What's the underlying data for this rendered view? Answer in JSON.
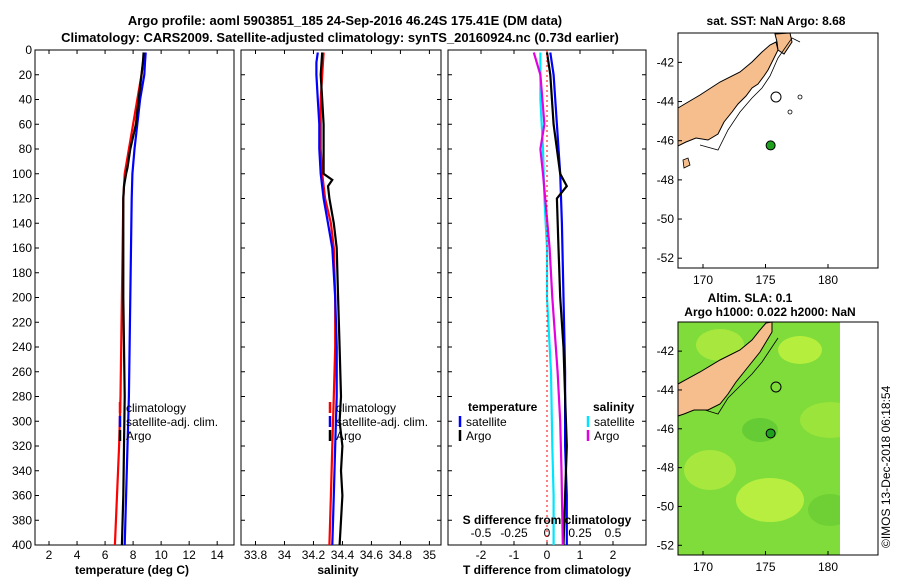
{
  "title": {
    "line1": "Argo profile: aoml 5903851_185 24-Sep-2016 46.24S 175.41E (DM data)",
    "line2": "Climatology: CARS2009. Satellite-adjusted climatology: synTS_20160924.nc (0.73d earlier)"
  },
  "colors": {
    "climatology": "#ff0000",
    "satellite": "#0000ff",
    "argo": "#000000",
    "sat_diff": "#00e5ff",
    "sal_diff": "#e000e0",
    "land": "#f5be8c",
    "ocean_anom": "#7fe03a"
  },
  "watermark": "©IMOS 13-Dec-2018 06:18:54",
  "chart_data": [
    {
      "type": "line",
      "name": "temperature-panel",
      "xlabel": "temperature (deg C)",
      "ylabel": "",
      "xlim": [
        1,
        15.2
      ],
      "ylim": [
        400,
        0
      ],
      "xticks": [
        "2",
        "4",
        "6",
        "8",
        "10",
        "12",
        "14"
      ],
      "xtick_values": [
        2,
        4,
        6,
        8,
        10,
        12,
        14
      ],
      "yticks": [
        0,
        20,
        40,
        60,
        80,
        100,
        120,
        140,
        160,
        180,
        200,
        220,
        240,
        260,
        280,
        300,
        320,
        340,
        360,
        380,
        400
      ],
      "legend_location": "center-right",
      "series": [
        {
          "name": "climatology",
          "color": "#ff0000",
          "depth": [
            2,
            20,
            40,
            60,
            80,
            100,
            120,
            160,
            200,
            240,
            280,
            320,
            360,
            400
          ],
          "values": [
            8.8,
            8.6,
            8.3,
            8.0,
            7.7,
            7.4,
            7.3,
            7.25,
            7.2,
            7.15,
            7.1,
            7.0,
            6.85,
            6.7
          ]
        },
        {
          "name": "satellite-adj. clim.",
          "color": "#0000ff",
          "depth": [
            2,
            10,
            20,
            40,
            60,
            80,
            100,
            120,
            160,
            200,
            240,
            280,
            320,
            360,
            400
          ],
          "values": [
            8.9,
            8.85,
            8.8,
            8.5,
            8.3,
            8.1,
            7.95,
            7.9,
            7.85,
            7.8,
            7.75,
            7.7,
            7.6,
            7.5,
            7.4
          ]
        },
        {
          "name": "Argo",
          "color": "#000000",
          "depth": [
            2,
            10,
            20,
            40,
            60,
            80,
            95,
            100,
            110,
            120,
            140,
            160,
            200,
            240,
            280,
            320,
            360,
            400
          ],
          "values": [
            8.75,
            8.7,
            8.6,
            8.4,
            8.2,
            7.8,
            7.6,
            7.5,
            7.35,
            7.3,
            7.3,
            7.3,
            7.3,
            7.35,
            7.4,
            7.35,
            7.3,
            7.2
          ]
        }
      ],
      "legend": [
        "climatology",
        "satellite-adj. clim.",
        "Argo"
      ]
    },
    {
      "type": "line",
      "name": "salinity-panel",
      "xlabel": "salinity",
      "xlim": [
        33.7,
        35.08
      ],
      "ylim": [
        400,
        0
      ],
      "xticks": [
        "33.8",
        "34",
        "34.2",
        "34.4",
        "34.6",
        "34.8",
        "35"
      ],
      "xtick_values": [
        33.8,
        34.0,
        34.2,
        34.4,
        34.6,
        34.8,
        35.0
      ],
      "legend_location": "center-right",
      "series": [
        {
          "name": "climatology",
          "color": "#ff0000",
          "depth": [
            2,
            20,
            40,
            60,
            80,
            100,
            120,
            140,
            160,
            200,
            240,
            280,
            320,
            360,
            400
          ],
          "values": [
            34.27,
            34.26,
            34.25,
            34.25,
            34.25,
            34.26,
            34.28,
            34.32,
            34.34,
            34.35,
            34.35,
            34.34,
            34.33,
            34.32,
            34.31
          ]
        },
        {
          "name": "satellite-adj. clim.",
          "color": "#0000ff",
          "depth": [
            2,
            10,
            20,
            40,
            60,
            80,
            100,
            120,
            140,
            160,
            200,
            240,
            280,
            320,
            360,
            400
          ],
          "values": [
            34.23,
            34.22,
            34.22,
            34.23,
            34.24,
            34.24,
            34.25,
            34.27,
            34.3,
            34.33,
            34.35,
            34.36,
            34.36,
            34.35,
            34.34,
            34.33
          ]
        },
        {
          "name": "Argo",
          "color": "#000000",
          "depth": [
            2,
            20,
            40,
            60,
            80,
            100,
            105,
            110,
            120,
            140,
            160,
            200,
            240,
            280,
            300,
            320,
            340,
            360,
            380,
            400
          ],
          "values": [
            34.26,
            34.25,
            34.26,
            34.27,
            34.27,
            34.27,
            34.33,
            34.3,
            34.31,
            34.34,
            34.36,
            34.37,
            34.38,
            34.39,
            34.38,
            34.4,
            34.39,
            34.4,
            34.39,
            34.38
          ]
        }
      ],
      "legend": [
        "climatology",
        "satellite-adj. clim.",
        "Argo"
      ]
    },
    {
      "type": "line",
      "name": "difference-panel",
      "xlabel": "T difference from climatology",
      "xlabel_top": "S difference from climatology",
      "xlim": [
        -3,
        3
      ],
      "ylim": [
        400,
        0
      ],
      "xticks": [
        "-2",
        "-1",
        "0",
        "1",
        "2"
      ],
      "xtick_values": [
        -2,
        -1,
        0,
        1,
        2
      ],
      "top_xticks": [
        "-0.5",
        "-0.25",
        "0",
        "0.25",
        "0.5"
      ],
      "top_xtick_values": [
        -0.5,
        -0.25,
        0,
        0.25,
        0.5
      ],
      "legend_location": "center-right",
      "series": [
        {
          "name": "satellite",
          "group": "temperature",
          "color": "#0000ff",
          "depth": [
            2,
            20,
            60,
            100,
            140,
            200,
            260,
            320,
            360,
            400
          ],
          "values": [
            0.1,
            0.2,
            0.3,
            0.4,
            0.45,
            0.5,
            0.55,
            0.55,
            0.6,
            0.6
          ]
        },
        {
          "name": "Argo",
          "group": "temperature",
          "color": "#000000",
          "depth": [
            2,
            20,
            60,
            100,
            110,
            120,
            160,
            200,
            240,
            280,
            320,
            360,
            400
          ],
          "values": [
            0.0,
            0.1,
            0.2,
            0.4,
            0.6,
            0.3,
            0.35,
            0.4,
            0.5,
            0.55,
            0.6,
            0.55,
            0.5
          ]
        },
        {
          "name": "satellite",
          "group": "salinity",
          "color": "#00e5ff",
          "depth": [
            2,
            40,
            80,
            120,
            160,
            200,
            260,
            320,
            360,
            400
          ],
          "values": [
            -0.05,
            -0.05,
            -0.03,
            -0.02,
            0.0,
            0.0,
            0.03,
            0.04,
            0.05,
            0.05
          ]
        },
        {
          "name": "Argo",
          "group": "salinity",
          "color": "#e000e0",
          "depth": [
            2,
            20,
            60,
            80,
            100,
            160,
            200,
            260,
            300,
            340,
            400
          ],
          "values": [
            -0.1,
            -0.05,
            -0.02,
            -0.05,
            -0.03,
            0.02,
            0.04,
            0.08,
            0.1,
            0.11,
            0.12
          ]
        }
      ],
      "legend_groups": [
        "temperature",
        "salinity"
      ],
      "legend": [
        "satellite",
        "Argo",
        "satellite",
        "Argo"
      ]
    },
    {
      "type": "map",
      "name": "sst-map",
      "title": "sat. SST: NaN Argo: 8.68",
      "xlim": [
        168,
        184
      ],
      "ylim": [
        -52.5,
        -40.5
      ],
      "xticks": [
        "170",
        "175",
        "180"
      ],
      "xtick_values": [
        170,
        175,
        180
      ],
      "yticks": [
        "-42",
        "-44",
        "-46",
        "-48",
        "-50",
        "-52"
      ],
      "ytick_values": [
        -42,
        -44,
        -46,
        -48,
        -50,
        -52
      ],
      "argo_marker": {
        "lon": 175.41,
        "lat": -46.24
      }
    },
    {
      "type": "map",
      "name": "sla-map",
      "title_line1": "Altim. SLA: 0.1",
      "title_line2": "Argo h1000: 0.022 h2000: NaN",
      "xlim": [
        168,
        184
      ],
      "ylim": [
        -52.5,
        -40.5
      ],
      "xticks": [
        "170",
        "175",
        "180"
      ],
      "xtick_values": [
        170,
        175,
        180
      ],
      "yticks": [
        "-42",
        "-44",
        "-46",
        "-48",
        "-50",
        "-52"
      ],
      "ytick_values": [
        -42,
        -44,
        -46,
        -48,
        -50,
        -52
      ],
      "argo_marker": {
        "lon": 175.41,
        "lat": -46.24
      }
    }
  ]
}
